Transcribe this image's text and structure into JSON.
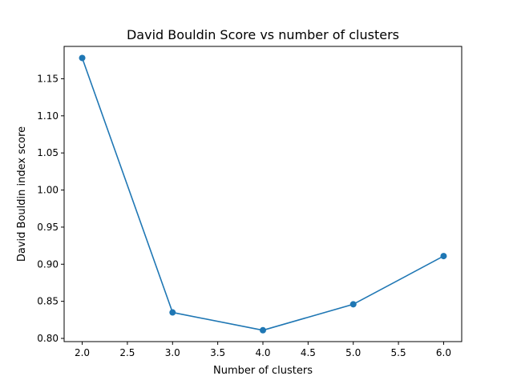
{
  "chart_data": {
    "type": "line",
    "title": "David Bouldin Score vs number of clusters",
    "xlabel": "Number of clusters",
    "ylabel": "David Bouldin index score",
    "x": [
      2,
      3,
      4,
      5,
      6
    ],
    "series": [
      {
        "values": [
          1.178,
          0.835,
          0.811,
          0.846,
          0.911
        ]
      }
    ],
    "xlim": [
      1.8,
      6.2
    ],
    "ylim": [
      0.7957,
      1.1936
    ],
    "xticks": [
      "2.0",
      "2.5",
      "3.0",
      "3.5",
      "4.0",
      "4.5",
      "5.0",
      "5.5",
      "6.0"
    ],
    "yticks": [
      "0.80",
      "0.85",
      "0.90",
      "0.95",
      "1.00",
      "1.05",
      "1.10",
      "1.15"
    ],
    "grid": false,
    "colors": {
      "line": "#1f77b4",
      "marker": "#1f77b4",
      "axes": "#000000"
    }
  }
}
